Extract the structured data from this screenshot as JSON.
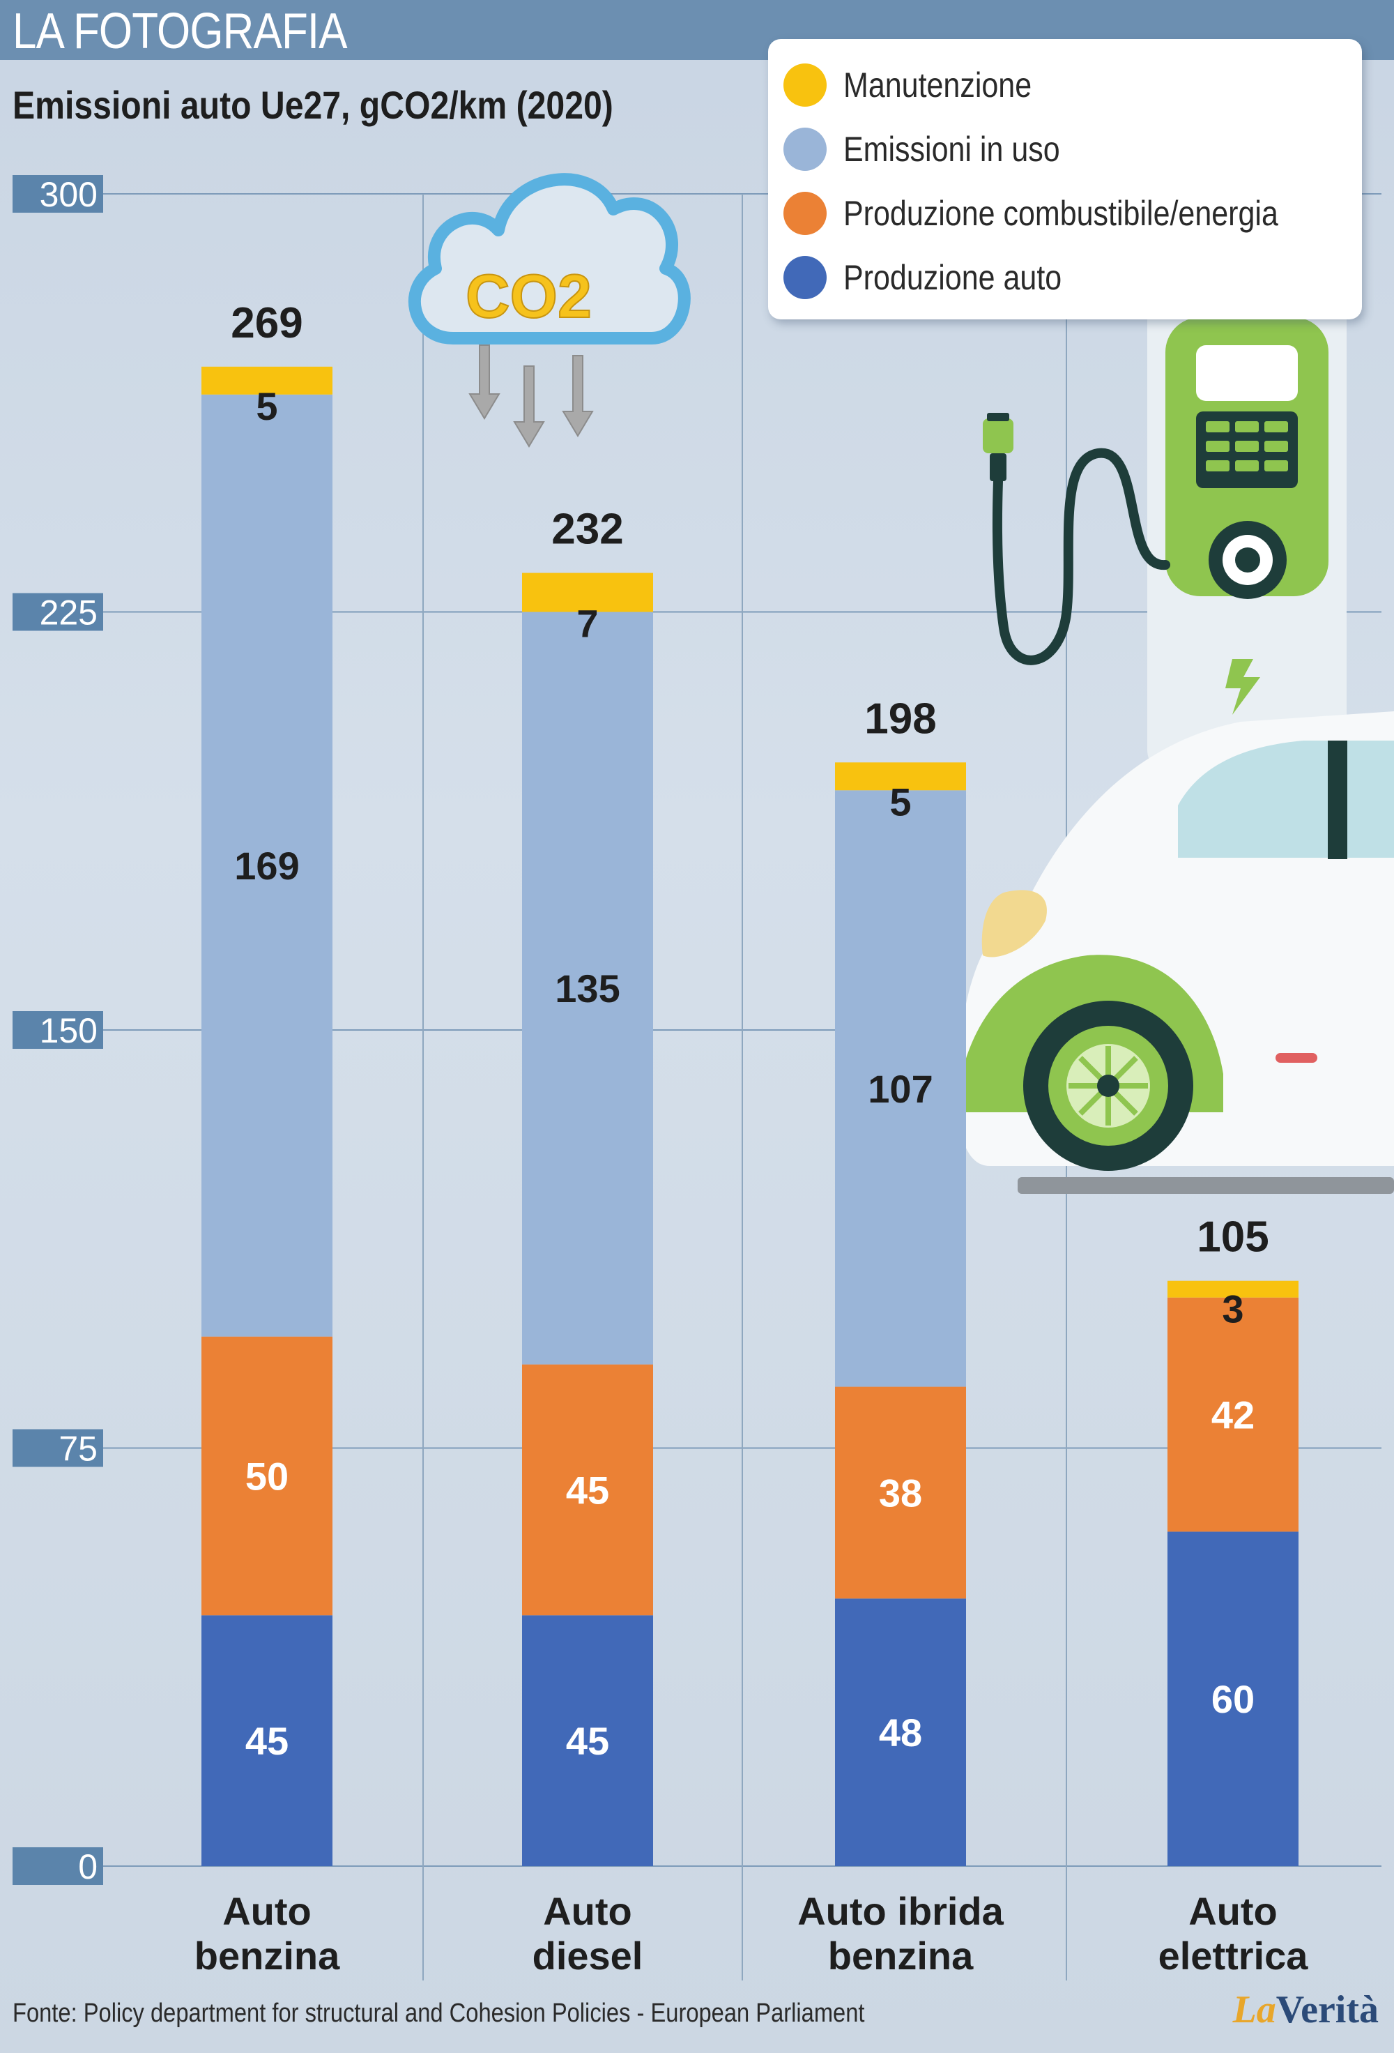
{
  "header": {
    "title": "LA FOTOGRAFIA"
  },
  "chart_data": {
    "type": "bar",
    "stacked": true,
    "title": "Emissioni auto Ue27, gCO2/km (2020)",
    "categories": [
      [
        "Auto",
        "benzina"
      ],
      [
        "Auto",
        "diesel"
      ],
      [
        "Auto ibrida",
        "benzina"
      ],
      [
        "Auto",
        "elettrica"
      ]
    ],
    "series": [
      {
        "name": "Produzione auto",
        "color": "#4169b8",
        "values": [
          45,
          45,
          48,
          60
        ]
      },
      {
        "name": "Produzione combustibile/energia",
        "color": "#eb8135",
        "values": [
          50,
          45,
          38,
          42
        ]
      },
      {
        "name": "Emissioni in uso",
        "color": "#9ab5d8",
        "values": [
          169,
          135,
          107,
          0
        ]
      },
      {
        "name": "Manutenzione",
        "color": "#f8c20f",
        "values": [
          5,
          7,
          5,
          3
        ]
      }
    ],
    "totals": [
      269,
      232,
      198,
      105
    ],
    "ylim": [
      0,
      300
    ],
    "yticks": [
      0,
      75,
      150,
      225,
      300
    ],
    "legend_position": "top-right",
    "grid": true
  },
  "legend": [
    {
      "label": "Manutenzione",
      "color": "#f8c20f"
    },
    {
      "label": "Emissioni in uso",
      "color": "#9ab5d8"
    },
    {
      "label": "Produzione combustibile/energia",
      "color": "#eb8135"
    },
    {
      "label": "Produzione auto",
      "color": "#4169b8"
    }
  ],
  "illustrations": {
    "cloud_text": "CO2",
    "icons": [
      "co2-cloud-icon",
      "ev-charging-station-icon",
      "electric-car-icon"
    ]
  },
  "footer": {
    "source": "Fonte: Policy department for structural and Cohesion Policies - European Parliament",
    "brand_prefix": "La",
    "brand_name": "Verità"
  }
}
